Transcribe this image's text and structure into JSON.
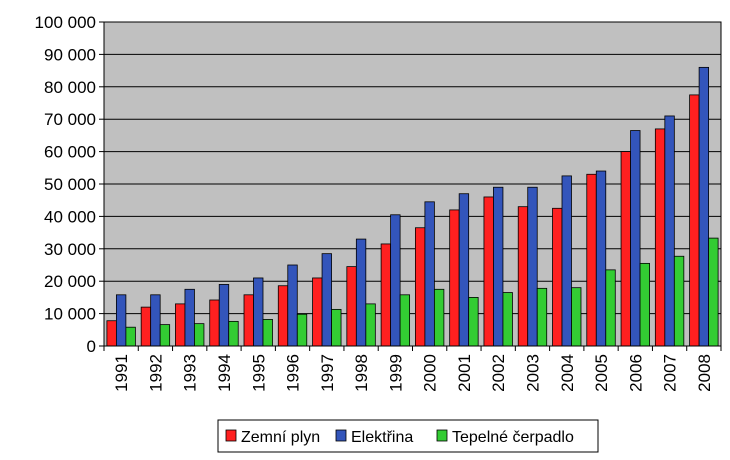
{
  "chart_data": {
    "type": "bar",
    "title": "",
    "xlabel": "",
    "ylabel": "",
    "categories": [
      "1991",
      "1992",
      "1993",
      "1994",
      "1995",
      "1996",
      "1997",
      "1998",
      "1999",
      "2000",
      "2001",
      "2002",
      "2003",
      "2004",
      "2005",
      "2006",
      "2007",
      "2008"
    ],
    "ylim": [
      0,
      100000
    ],
    "yticks": [
      0,
      10000,
      20000,
      30000,
      40000,
      50000,
      60000,
      70000,
      80000,
      90000,
      100000
    ],
    "ytick_labels": [
      "0",
      "10 000",
      "20 000",
      "30 000",
      "40 000",
      "50 000",
      "60 000",
      "70 000",
      "80 000",
      "90 000",
      "100 000"
    ],
    "grid": true,
    "legend_position": "bottom",
    "plot_background": "#c0c0c0",
    "series": [
      {
        "name": "Zemní plyn",
        "color": "#ff2020",
        "values": [
          7800,
          12000,
          13000,
          14200,
          15800,
          18600,
          21000,
          24500,
          31500,
          36500,
          42000,
          46000,
          43000,
          42500,
          53000,
          60000,
          67000,
          77500
        ]
      },
      {
        "name": "Elektřina",
        "color": "#3355bb",
        "values": [
          15800,
          15800,
          17500,
          19000,
          21000,
          25000,
          28500,
          33000,
          40500,
          44500,
          47000,
          49000,
          49000,
          52500,
          54000,
          66500,
          71000,
          86000
        ]
      },
      {
        "name": "Tepelné čerpadlo",
        "color": "#33cc33",
        "values": [
          5800,
          6600,
          6900,
          7600,
          8200,
          9800,
          11300,
          13000,
          15800,
          17500,
          15000,
          16500,
          17800,
          18000,
          23500,
          25500,
          27700,
          33300
        ]
      }
    ]
  }
}
